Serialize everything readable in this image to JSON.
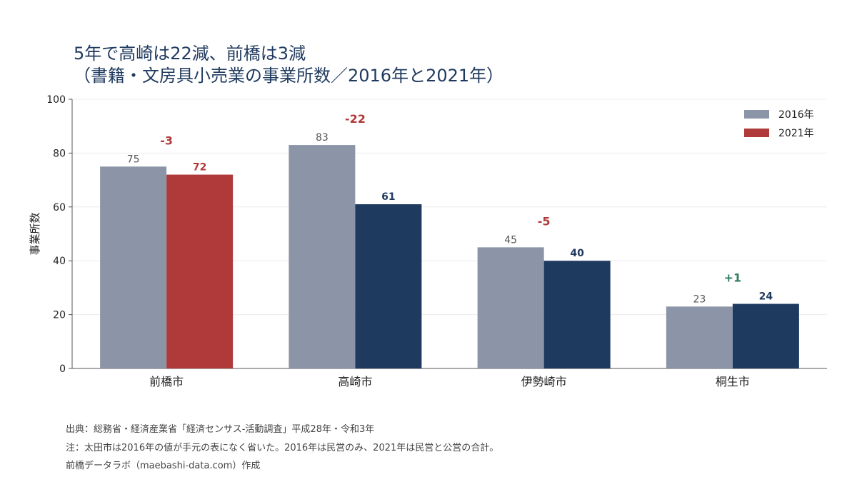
{
  "title_line1": "5年で高崎は22減、前橋は3減",
  "title_line2": "（書籍・文房具小売業の事業所数／2016年と2021年）",
  "footer": {
    "source": "出典：総務省・経済産業省「経済センサス-活動調査」平成28年・令和3年",
    "note": "注：太田市は2016年の値が手元の表になく省いた。2016年は民営のみ、2021年は民営と公営の合計。",
    "credit": "前橋データラボ（maebashi-data.com）作成"
  },
  "colors": {
    "gray": "#8b95a7",
    "red": "#b03a3a",
    "navy": "#1f3a5f",
    "green": "#2e7d5b"
  },
  "chart_data": {
    "type": "bar",
    "ylabel": "事業所数",
    "ylim": [
      0,
      100
    ],
    "yticks": [
      0,
      20,
      40,
      60,
      80,
      100
    ],
    "categories": [
      "前橋市",
      "高崎市",
      "伊勢崎市",
      "桐生市"
    ],
    "series": [
      {
        "name": "2016年",
        "values": [
          75,
          83,
          45,
          23
        ]
      },
      {
        "name": "2021年",
        "values": [
          72,
          61,
          40,
          24
        ]
      }
    ],
    "diff_labels": [
      "-3",
      "-22",
      "-5",
      "+1"
    ],
    "highlight_category": "前橋市",
    "legend_position": "top-right",
    "grid": true
  }
}
